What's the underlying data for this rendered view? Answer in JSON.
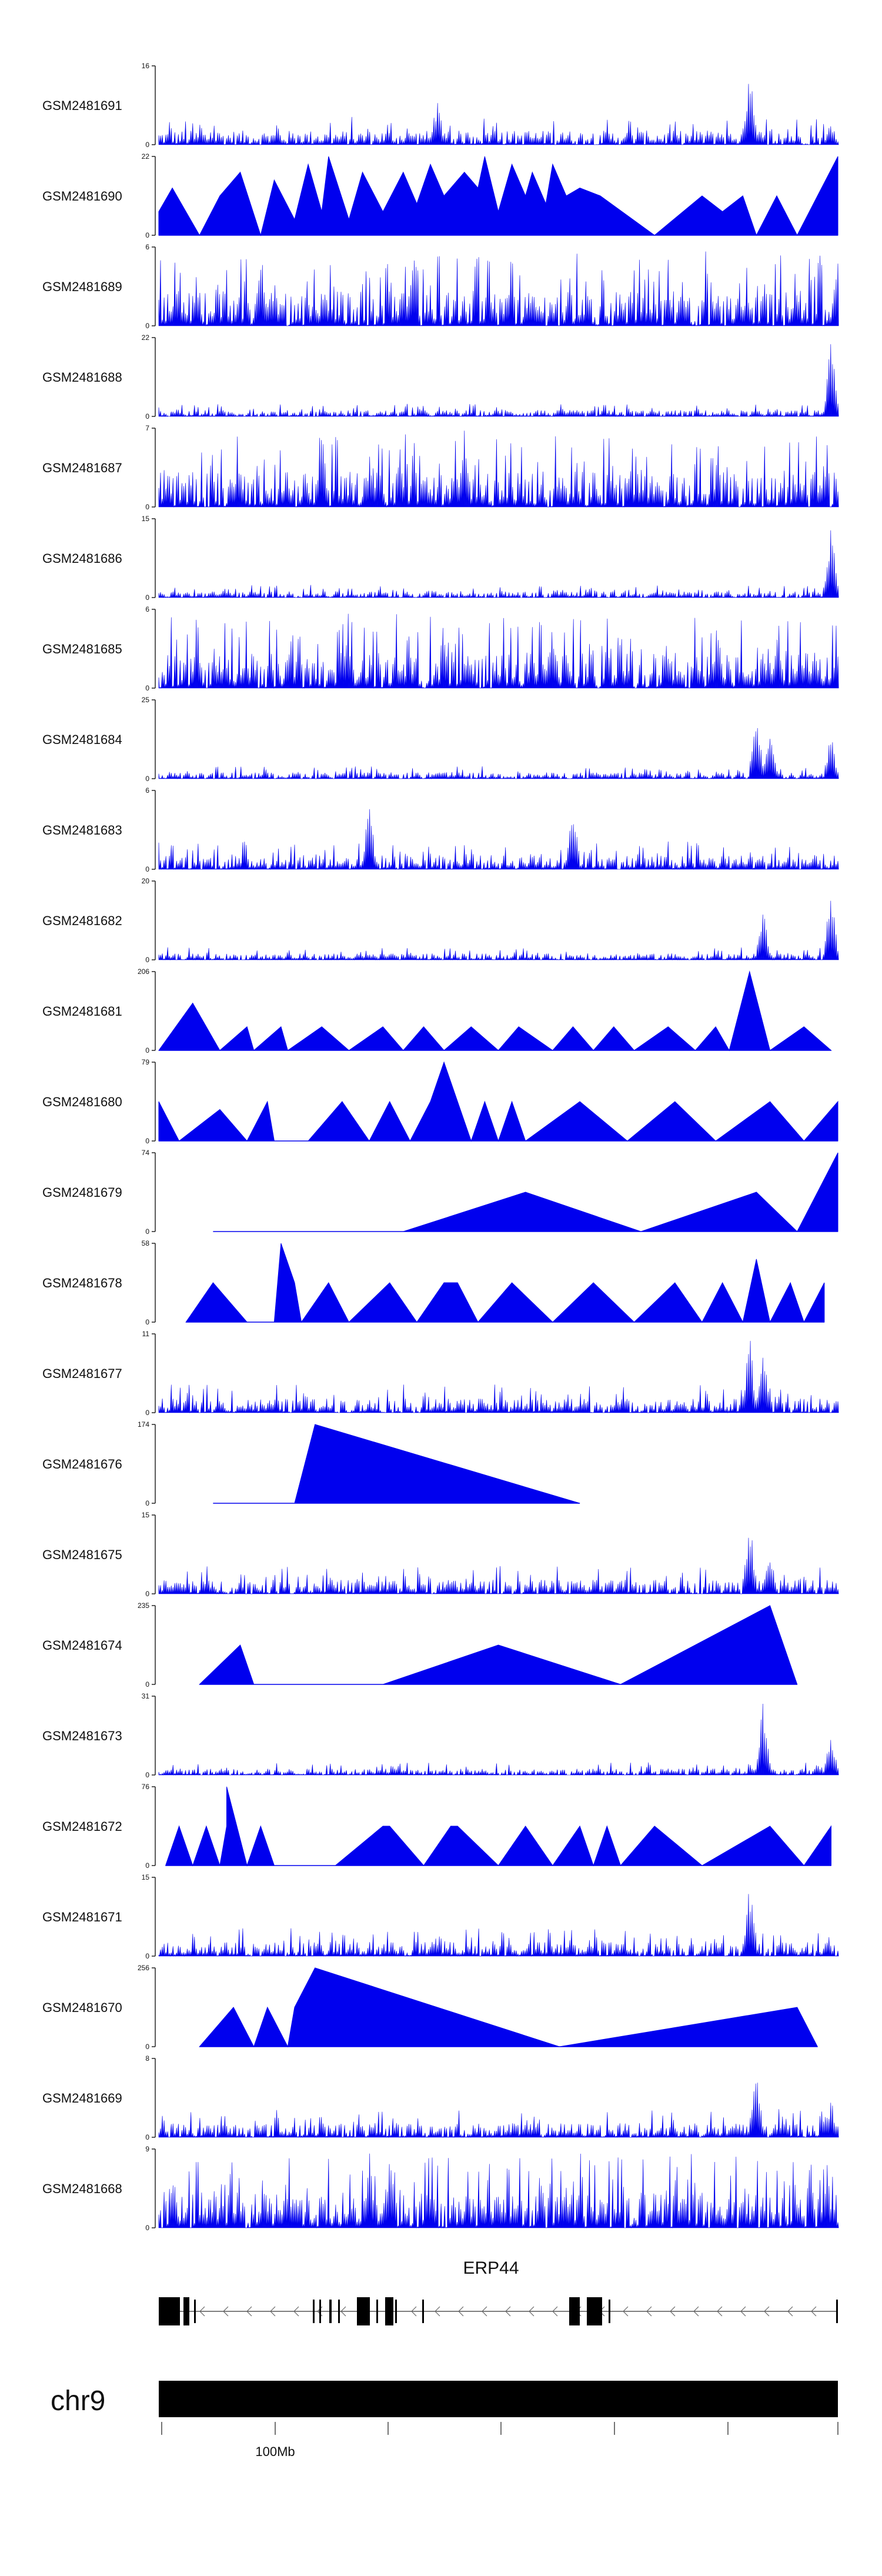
{
  "colors": {
    "signal": "#0000ee",
    "axis": "#222222",
    "gene": "#000000",
    "chrom": "#000000"
  },
  "chart_data": {
    "type": "area",
    "tracks": [
      {
        "label": "GSM2481691",
        "ymax": "16",
        "max": 16,
        "pattern": "dense",
        "peaks": [
          {
            "p": 0.41,
            "h": 0.6
          },
          {
            "p": 0.87,
            "h": 1.0
          },
          {
            "p": 0.99,
            "h": 0.3
          }
        ],
        "active": [
          0.0,
          1.0
        ]
      },
      {
        "label": "GSM2481690",
        "ymax": "22",
        "max": 22,
        "pattern": "sparse",
        "pts": [
          [
            0.0,
            0.3
          ],
          [
            0.02,
            0.6
          ],
          [
            0.06,
            0.0
          ],
          [
            0.09,
            0.5
          ],
          [
            0.12,
            0.8
          ],
          [
            0.15,
            0.0
          ],
          [
            0.17,
            0.7
          ],
          [
            0.2,
            0.2
          ],
          [
            0.22,
            0.9
          ],
          [
            0.24,
            0.3
          ],
          [
            0.25,
            1.0
          ],
          [
            0.28,
            0.2
          ],
          [
            0.3,
            0.8
          ],
          [
            0.33,
            0.3
          ],
          [
            0.36,
            0.8
          ],
          [
            0.38,
            0.4
          ],
          [
            0.4,
            0.9
          ],
          [
            0.42,
            0.5
          ],
          [
            0.45,
            0.8
          ],
          [
            0.47,
            0.6
          ],
          [
            0.48,
            1.0
          ],
          [
            0.5,
            0.3
          ],
          [
            0.52,
            0.9
          ],
          [
            0.54,
            0.5
          ],
          [
            0.55,
            0.8
          ],
          [
            0.57,
            0.4
          ],
          [
            0.58,
            0.9
          ],
          [
            0.6,
            0.5
          ],
          [
            0.62,
            0.6
          ],
          [
            0.65,
            0.5
          ],
          [
            0.73,
            0.0
          ],
          [
            0.8,
            0.5
          ],
          [
            0.83,
            0.3
          ],
          [
            0.86,
            0.5
          ],
          [
            0.88,
            0.0
          ],
          [
            0.91,
            0.5
          ],
          [
            0.94,
            0.0
          ],
          [
            0.97,
            0.5
          ],
          [
            1.0,
            1.0
          ]
        ]
      },
      {
        "label": "GSM2481689",
        "ymax": "6",
        "max": 6,
        "pattern": "dense-uniform",
        "peaks": [
          {
            "p": 0.15,
            "h": 0.95
          },
          {
            "p": 1.0,
            "h": 0.95
          }
        ],
        "active": [
          0.0,
          1.0
        ]
      },
      {
        "label": "GSM2481688",
        "ymax": "22",
        "max": 22,
        "pattern": "dense-low",
        "peaks": [
          {
            "p": 0.99,
            "h": 1.0
          },
          {
            "p": 0.88,
            "h": 0.12
          }
        ],
        "active": [
          0.0,
          1.0
        ]
      },
      {
        "label": "GSM2481687",
        "ymax": "7",
        "max": 7,
        "pattern": "dense-uniform",
        "peaks": [
          {
            "p": 0.45,
            "h": 1.0
          }
        ],
        "active": [
          0.0,
          1.0
        ]
      },
      {
        "label": "GSM2481686",
        "ymax": "15",
        "max": 15,
        "pattern": "dense-low",
        "peaks": [
          {
            "p": 0.99,
            "h": 1.0
          }
        ],
        "active": [
          0.0,
          1.0
        ]
      },
      {
        "label": "GSM2481685",
        "ymax": "6",
        "max": 6,
        "pattern": "dense-uniform",
        "peaks": [
          {
            "p": 0.58,
            "h": 0.9
          }
        ],
        "active": [
          0.0,
          1.0
        ]
      },
      {
        "label": "GSM2481684",
        "ymax": "25",
        "max": 25,
        "pattern": "dense-low",
        "peaks": [
          {
            "p": 0.88,
            "h": 1.0
          },
          {
            "p": 0.9,
            "h": 0.8
          },
          {
            "p": 0.99,
            "h": 0.6
          }
        ],
        "active": [
          0.0,
          1.0
        ]
      },
      {
        "label": "GSM2481683",
        "ymax": "6",
        "max": 6,
        "pattern": "dense",
        "peaks": [
          {
            "p": 0.31,
            "h": 0.9
          },
          {
            "p": 0.61,
            "h": 0.95
          }
        ],
        "active": [
          0.0,
          1.0
        ]
      },
      {
        "label": "GSM2481682",
        "ymax": "20",
        "max": 20,
        "pattern": "dense-low",
        "peaks": [
          {
            "p": 0.89,
            "h": 0.7
          },
          {
            "p": 0.99,
            "h": 1.0
          }
        ],
        "active": [
          0.0,
          1.0
        ]
      },
      {
        "label": "GSM2481681",
        "ymax": "206",
        "max": 206,
        "pattern": "sparse",
        "pts": [
          [
            0.0,
            0.0
          ],
          [
            0.05,
            0.6
          ],
          [
            0.09,
            0.0
          ],
          [
            0.13,
            0.3
          ],
          [
            0.14,
            0.0
          ],
          [
            0.18,
            0.3
          ],
          [
            0.19,
            0.0
          ],
          [
            0.24,
            0.3
          ],
          [
            0.28,
            0.0
          ],
          [
            0.33,
            0.3
          ],
          [
            0.36,
            0.0
          ],
          [
            0.39,
            0.3
          ],
          [
            0.42,
            0.0
          ],
          [
            0.46,
            0.3
          ],
          [
            0.5,
            0.0
          ],
          [
            0.53,
            0.3
          ],
          [
            0.58,
            0.0
          ],
          [
            0.61,
            0.3
          ],
          [
            0.64,
            0.0
          ],
          [
            0.67,
            0.3
          ],
          [
            0.7,
            0.0
          ],
          [
            0.75,
            0.3
          ],
          [
            0.79,
            0.0
          ],
          [
            0.82,
            0.3
          ],
          [
            0.84,
            0.0
          ],
          [
            0.87,
            1.0
          ],
          [
            0.9,
            0.0
          ],
          [
            0.95,
            0.3
          ],
          [
            0.99,
            0.0
          ]
        ]
      },
      {
        "label": "GSM2481680",
        "ymax": "79",
        "max": 79,
        "pattern": "sparse",
        "pts": [
          [
            0.0,
            0.5
          ],
          [
            0.03,
            0.0
          ],
          [
            0.09,
            0.4
          ],
          [
            0.13,
            0.0
          ],
          [
            0.16,
            0.5
          ],
          [
            0.17,
            0.0
          ],
          [
            0.22,
            0.0
          ],
          [
            0.27,
            0.5
          ],
          [
            0.31,
            0.0
          ],
          [
            0.34,
            0.5
          ],
          [
            0.37,
            0.0
          ],
          [
            0.4,
            0.5
          ],
          [
            0.42,
            1.0
          ],
          [
            0.44,
            0.5
          ],
          [
            0.46,
            0.0
          ],
          [
            0.48,
            0.5
          ],
          [
            0.5,
            0.0
          ],
          [
            0.52,
            0.5
          ],
          [
            0.54,
            0.0
          ],
          [
            0.62,
            0.5
          ],
          [
            0.69,
            0.0
          ],
          [
            0.76,
            0.5
          ],
          [
            0.82,
            0.0
          ],
          [
            0.9,
            0.5
          ],
          [
            0.95,
            0.0
          ],
          [
            1.0,
            0.5
          ]
        ]
      },
      {
        "label": "GSM2481679",
        "ymax": "74",
        "max": 74,
        "pattern": "sparse",
        "pts": [
          [
            0.08,
            0.0
          ],
          [
            0.36,
            0.0
          ],
          [
            0.54,
            0.5
          ],
          [
            0.71,
            0.0
          ],
          [
            0.88,
            0.5
          ],
          [
            0.94,
            0.0
          ],
          [
            1.0,
            1.0
          ]
        ]
      },
      {
        "label": "GSM2481678",
        "ymax": "58",
        "max": 58,
        "pattern": "sparse",
        "pts": [
          [
            0.04,
            0.0
          ],
          [
            0.08,
            0.5
          ],
          [
            0.13,
            0.0
          ],
          [
            0.17,
            0.0
          ],
          [
            0.18,
            1.0
          ],
          [
            0.2,
            0.5
          ],
          [
            0.21,
            0.0
          ],
          [
            0.25,
            0.5
          ],
          [
            0.28,
            0.0
          ],
          [
            0.34,
            0.5
          ],
          [
            0.38,
            0.0
          ],
          [
            0.42,
            0.5
          ],
          [
            0.44,
            0.5
          ],
          [
            0.47,
            0.0
          ],
          [
            0.52,
            0.5
          ],
          [
            0.58,
            0.0
          ],
          [
            0.64,
            0.5
          ],
          [
            0.7,
            0.0
          ],
          [
            0.76,
            0.5
          ],
          [
            0.8,
            0.0
          ],
          [
            0.83,
            0.5
          ],
          [
            0.86,
            0.0
          ],
          [
            0.88,
            0.8
          ],
          [
            0.9,
            0.0
          ],
          [
            0.93,
            0.5
          ],
          [
            0.95,
            0.0
          ],
          [
            0.98,
            0.5
          ]
        ]
      },
      {
        "label": "GSM2481677",
        "ymax": "11",
        "max": 11,
        "pattern": "dense",
        "peaks": [
          {
            "p": 0.87,
            "h": 1.0
          },
          {
            "p": 0.89,
            "h": 0.8
          }
        ],
        "active": [
          0.0,
          1.0
        ]
      },
      {
        "label": "GSM2481676",
        "ymax": "174",
        "max": 174,
        "pattern": "sparse",
        "pts": [
          [
            0.08,
            0.0
          ],
          [
            0.2,
            0.0
          ],
          [
            0.23,
            1.0
          ],
          [
            0.62,
            0.0
          ]
        ]
      },
      {
        "label": "GSM2481675",
        "ymax": "15",
        "max": 15,
        "pattern": "dense",
        "peaks": [
          {
            "p": 0.87,
            "h": 1.0
          },
          {
            "p": 0.9,
            "h": 0.6
          }
        ],
        "active": [
          0.0,
          1.0
        ]
      },
      {
        "label": "GSM2481674",
        "ymax": "235",
        "max": 235,
        "pattern": "sparse",
        "pts": [
          [
            0.06,
            0.0
          ],
          [
            0.12,
            0.5
          ],
          [
            0.14,
            0.0
          ],
          [
            0.33,
            0.0
          ],
          [
            0.5,
            0.5
          ],
          [
            0.68,
            0.0
          ],
          [
            0.9,
            1.0
          ],
          [
            0.94,
            0.0
          ]
        ]
      },
      {
        "label": "GSM2481673",
        "ymax": "31",
        "max": 31,
        "pattern": "dense-low",
        "peaks": [
          {
            "p": 0.89,
            "h": 1.0
          },
          {
            "p": 0.99,
            "h": 0.6
          }
        ],
        "active": [
          0.0,
          1.0
        ]
      },
      {
        "label": "GSM2481672",
        "ymax": "76",
        "max": 76,
        "pattern": "sparse",
        "pts": [
          [
            0.01,
            0.0
          ],
          [
            0.03,
            0.5
          ],
          [
            0.05,
            0.0
          ],
          [
            0.07,
            0.5
          ],
          [
            0.09,
            0.0
          ],
          [
            0.1,
            0.5
          ],
          [
            0.1,
            1.0
          ],
          [
            0.13,
            0.0
          ],
          [
            0.15,
            0.5
          ],
          [
            0.17,
            0.0
          ],
          [
            0.26,
            0.0
          ],
          [
            0.33,
            0.5
          ],
          [
            0.34,
            0.5
          ],
          [
            0.39,
            0.0
          ],
          [
            0.43,
            0.5
          ],
          [
            0.44,
            0.5
          ],
          [
            0.5,
            0.0
          ],
          [
            0.54,
            0.5
          ],
          [
            0.58,
            0.0
          ],
          [
            0.62,
            0.5
          ],
          [
            0.64,
            0.0
          ],
          [
            0.66,
            0.5
          ],
          [
            0.68,
            0.0
          ],
          [
            0.73,
            0.5
          ],
          [
            0.8,
            0.0
          ],
          [
            0.9,
            0.5
          ],
          [
            0.95,
            0.0
          ],
          [
            0.99,
            0.5
          ]
        ]
      },
      {
        "label": "GSM2481671",
        "ymax": "15",
        "max": 15,
        "pattern": "dense",
        "peaks": [
          {
            "p": 0.87,
            "h": 1.0
          }
        ],
        "active": [
          0.0,
          1.0
        ]
      },
      {
        "label": "GSM2481670",
        "ymax": "256",
        "max": 256,
        "pattern": "sparse",
        "pts": [
          [
            0.06,
            0.0
          ],
          [
            0.11,
            0.5
          ],
          [
            0.14,
            0.0
          ],
          [
            0.16,
            0.5
          ],
          [
            0.19,
            0.0
          ],
          [
            0.2,
            0.5
          ],
          [
            0.23,
            1.0
          ],
          [
            0.59,
            0.0
          ],
          [
            0.94,
            0.5
          ],
          [
            0.97,
            0.0
          ]
        ]
      },
      {
        "label": "GSM2481669",
        "ymax": "8",
        "max": 8,
        "pattern": "dense",
        "peaks": [
          {
            "p": 0.88,
            "h": 1.0
          },
          {
            "p": 0.99,
            "h": 0.5
          }
        ],
        "active": [
          0.0,
          1.0
        ]
      },
      {
        "label": "GSM2481668",
        "ymax": "9",
        "max": 9,
        "pattern": "dense-uniform",
        "peaks": [
          {
            "p": 0.31,
            "h": 1.0
          },
          {
            "p": 0.34,
            "h": 0.95
          }
        ],
        "active": [
          0.0,
          1.0
        ]
      }
    ],
    "gene": {
      "name": "ERP44",
      "strand": "-"
    },
    "chromosome": {
      "name": "chr9",
      "tick_label": "100Mb"
    }
  }
}
